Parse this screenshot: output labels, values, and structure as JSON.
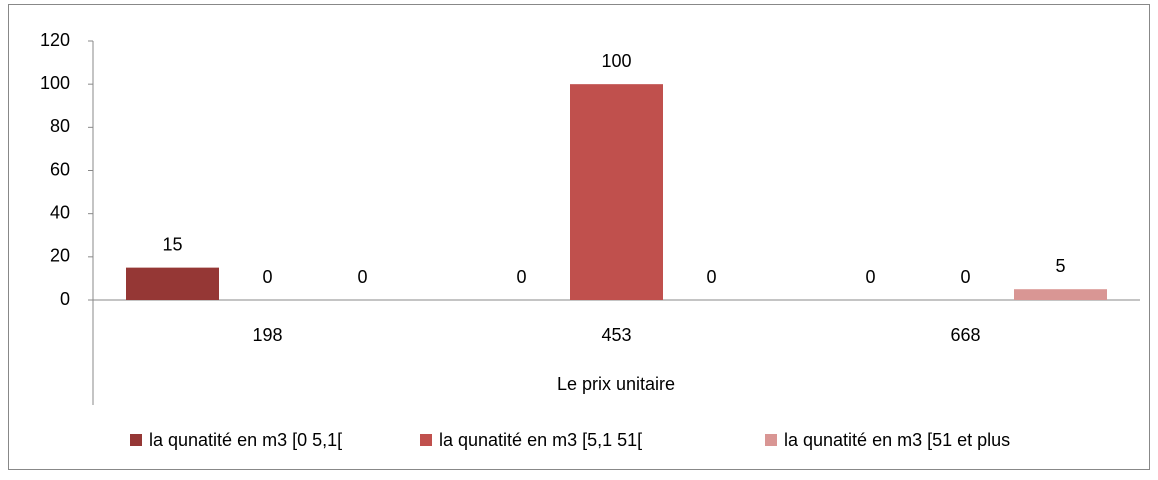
{
  "chart_data": {
    "type": "bar",
    "x_label": "Le prix unitaire",
    "categories": [
      "198",
      "453",
      "668"
    ],
    "series": [
      {
        "name": "la qunatité en m3 [0  5,1[",
        "color": "#953735",
        "values": [
          15,
          0,
          0
        ]
      },
      {
        "name": "la qunatité en m3 [5,1  51[",
        "color": "#c0504d",
        "values": [
          0,
          100,
          0
        ]
      },
      {
        "name": "la qunatité en m3 [51 et plus",
        "color": "#d99694",
        "values": [
          0,
          0,
          5
        ]
      }
    ],
    "ylim": [
      0,
      120
    ],
    "yticks": [
      0,
      20,
      40,
      60,
      80,
      100,
      120
    ],
    "grid": false,
    "legend": "bottom",
    "data_labels": true
  }
}
